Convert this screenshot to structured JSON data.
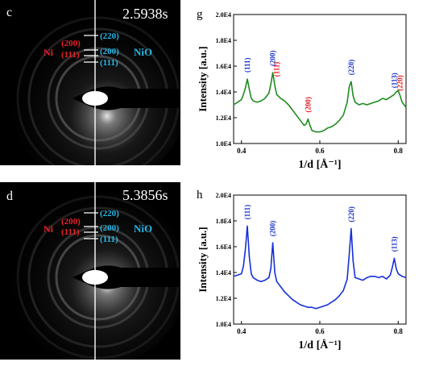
{
  "panels": [
    {
      "id": "c",
      "label": "c",
      "time": "2.5938s"
    },
    {
      "id": "d",
      "label": "d",
      "time": "5.3856s"
    }
  ],
  "saed": {
    "ni_label": "Ni",
    "nio_label": "NiO",
    "ni_rings": [
      "(200)",
      "(111)"
    ],
    "nio_rings": [
      "(220)",
      "(200)",
      "(111)"
    ],
    "colors": {
      "ni": "#e8202a",
      "nio": "#29b6e6"
    }
  },
  "chart_data": [
    {
      "panel_label": "g",
      "type": "line",
      "xlabel": "1/d [Å⁻¹]",
      "ylabel": "Intensity [a.u.]",
      "xlim": [
        0.38,
        0.82
      ],
      "ylim": [
        10000,
        20000
      ],
      "xticks": [
        0.4,
        0.6,
        0.8
      ],
      "yticks": [
        10000,
        12000,
        14000,
        16000,
        18000,
        20000
      ],
      "ytick_labels": [
        "1.0E4",
        "1.2E4",
        "1.4E4",
        "1.6E4",
        "1.8E4",
        "2.0E4"
      ],
      "color": "#1e8c1e",
      "x": [
        0.38,
        0.39,
        0.4,
        0.405,
        0.41,
        0.415,
        0.42,
        0.425,
        0.43,
        0.44,
        0.45,
        0.46,
        0.47,
        0.475,
        0.48,
        0.485,
        0.49,
        0.5,
        0.51,
        0.52,
        0.53,
        0.54,
        0.55,
        0.56,
        0.565,
        0.57,
        0.575,
        0.58,
        0.59,
        0.6,
        0.61,
        0.62,
        0.63,
        0.64,
        0.65,
        0.66,
        0.67,
        0.675,
        0.68,
        0.685,
        0.69,
        0.7,
        0.71,
        0.72,
        0.73,
        0.74,
        0.75,
        0.76,
        0.77,
        0.78,
        0.79,
        0.795,
        0.8,
        0.805,
        0.81,
        0.82
      ],
      "y": [
        13000,
        13200,
        13400,
        13800,
        14300,
        15000,
        14200,
        13500,
        13300,
        13200,
        13300,
        13500,
        13900,
        14600,
        15500,
        14500,
        13800,
        13500,
        13300,
        13000,
        12600,
        12200,
        11800,
        11400,
        11500,
        11900,
        11400,
        11000,
        10900,
        10900,
        11000,
        11200,
        11300,
        11500,
        11800,
        12200,
        13200,
        14400,
        14800,
        13700,
        13200,
        13000,
        13100,
        13000,
        13100,
        13200,
        13300,
        13500,
        13400,
        13600,
        13800,
        14000,
        14100,
        13700,
        13200,
        12800
      ],
      "annotations": [
        {
          "label": "(111)",
          "x": 0.415,
          "color": "#1b35c9"
        },
        {
          "label": "(200)",
          "x": 0.48,
          "color": "#1b35c9"
        },
        {
          "label": "(111)",
          "x": 0.49,
          "color": "#e31b1b"
        },
        {
          "label": "(200)",
          "x": 0.57,
          "color": "#e31b1b"
        },
        {
          "label": "(220)",
          "x": 0.68,
          "color": "#1b35c9"
        },
        {
          "label": "(113)",
          "x": 0.79,
          "color": "#1b35c9"
        },
        {
          "label": "(220)",
          "x": 0.805,
          "color": "#e31b1b"
        }
      ]
    },
    {
      "panel_label": "h",
      "type": "line",
      "xlabel": "1/d [Å⁻¹]",
      "ylabel": "Intensity [a.u.]",
      "xlim": [
        0.38,
        0.82
      ],
      "ylim": [
        10000,
        20000
      ],
      "xticks": [
        0.4,
        0.6,
        0.8
      ],
      "yticks": [
        10000,
        12000,
        14000,
        16000,
        18000,
        20000
      ],
      "ytick_labels": [
        "1.0E4",
        "1.2E4",
        "1.4E4",
        "1.6E4",
        "1.8E4",
        "2.0E4"
      ],
      "color": "#1530d8",
      "x": [
        0.38,
        0.39,
        0.4,
        0.405,
        0.41,
        0.415,
        0.42,
        0.425,
        0.43,
        0.44,
        0.45,
        0.46,
        0.47,
        0.475,
        0.48,
        0.485,
        0.49,
        0.5,
        0.51,
        0.52,
        0.53,
        0.54,
        0.55,
        0.56,
        0.57,
        0.58,
        0.59,
        0.6,
        0.61,
        0.62,
        0.63,
        0.64,
        0.65,
        0.66,
        0.67,
        0.675,
        0.68,
        0.685,
        0.69,
        0.7,
        0.71,
        0.72,
        0.73,
        0.74,
        0.75,
        0.76,
        0.77,
        0.78,
        0.785,
        0.79,
        0.795,
        0.8,
        0.81,
        0.82
      ],
      "y": [
        13700,
        13800,
        13900,
        14500,
        15800,
        17600,
        15200,
        13900,
        13600,
        13400,
        13300,
        13400,
        13600,
        14300,
        16300,
        14000,
        13300,
        12900,
        12500,
        12200,
        11900,
        11700,
        11500,
        11400,
        11300,
        11300,
        11200,
        11300,
        11400,
        11500,
        11700,
        11900,
        12200,
        12600,
        13500,
        15400,
        17400,
        14900,
        13600,
        13500,
        13400,
        13600,
        13700,
        13700,
        13600,
        13700,
        13500,
        13800,
        14400,
        15100,
        14300,
        13900,
        13700,
        13600
      ],
      "annotations": [
        {
          "label": "(111)",
          "x": 0.415,
          "color": "#1b35c9"
        },
        {
          "label": "(200)",
          "x": 0.48,
          "color": "#1b35c9"
        },
        {
          "label": "(220)",
          "x": 0.68,
          "color": "#1b35c9"
        },
        {
          "label": "(113)",
          "x": 0.79,
          "color": "#1b35c9"
        }
      ]
    }
  ]
}
